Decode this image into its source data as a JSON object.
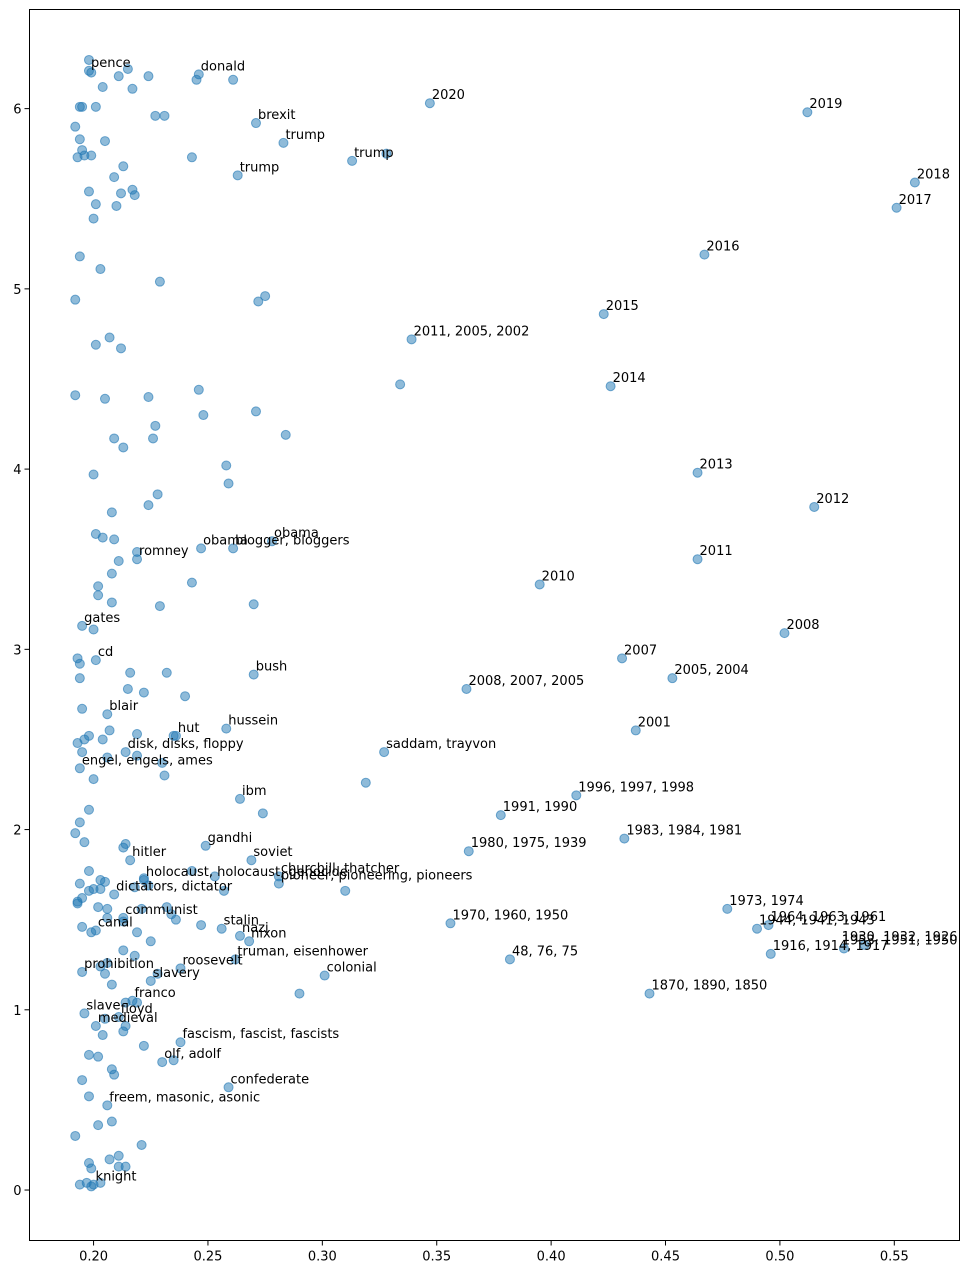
{
  "chart_data": {
    "type": "scatter",
    "title": "",
    "xlabel": "",
    "ylabel": "",
    "xlim": [
      0.172,
      0.5785
    ],
    "ylim": [
      -0.28,
      6.55
    ],
    "grid": false,
    "legend": "none",
    "color": "#1f77b4",
    "xticks": [
      0.2,
      0.25,
      0.3,
      0.35,
      0.4,
      0.45,
      0.5,
      0.55
    ],
    "yticks": [
      0,
      1,
      2,
      3,
      4,
      5,
      6
    ],
    "xtick_labels": [
      "0.20",
      "0.25",
      "0.30",
      "0.35",
      "0.40",
      "0.45",
      "0.50",
      "0.55"
    ],
    "ytick_labels": [
      "0",
      "1",
      "2",
      "3",
      "4",
      "5",
      "6"
    ],
    "labeled_points": [
      {
        "x": 0.198,
        "y": 6.21,
        "label": "pence"
      },
      {
        "x": 0.246,
        "y": 6.19,
        "label": "donald"
      },
      {
        "x": 0.347,
        "y": 6.03,
        "label": "2020"
      },
      {
        "x": 0.512,
        "y": 5.98,
        "label": "2019"
      },
      {
        "x": 0.271,
        "y": 5.92,
        "label": "brexit"
      },
      {
        "x": 0.283,
        "y": 5.81,
        "label": "trump"
      },
      {
        "x": 0.313,
        "y": 5.71,
        "label": "trump"
      },
      {
        "x": 0.263,
        "y": 5.63,
        "label": "trump"
      },
      {
        "x": 0.559,
        "y": 5.59,
        "label": "2018"
      },
      {
        "x": 0.551,
        "y": 5.45,
        "label": "2017"
      },
      {
        "x": 0.467,
        "y": 5.19,
        "label": "2016"
      },
      {
        "x": 0.423,
        "y": 4.86,
        "label": "2015"
      },
      {
        "x": 0.339,
        "y": 4.72,
        "label": "2011, 2005, 2002"
      },
      {
        "x": 0.426,
        "y": 4.46,
        "label": "2014"
      },
      {
        "x": 0.464,
        "y": 3.98,
        "label": "2013"
      },
      {
        "x": 0.515,
        "y": 3.79,
        "label": "2012"
      },
      {
        "x": 0.247,
        "y": 3.56,
        "label": "obama"
      },
      {
        "x": 0.278,
        "y": 3.6,
        "label": "obama"
      },
      {
        "x": 0.261,
        "y": 3.56,
        "label": "blogger, bloggers"
      },
      {
        "x": 0.464,
        "y": 3.5,
        "label": "2011"
      },
      {
        "x": 0.219,
        "y": 3.5,
        "label": "romney"
      },
      {
        "x": 0.395,
        "y": 3.36,
        "label": "2010"
      },
      {
        "x": 0.195,
        "y": 3.13,
        "label": "gates"
      },
      {
        "x": 0.502,
        "y": 3.09,
        "label": "2008"
      },
      {
        "x": 0.431,
        "y": 2.95,
        "label": "2007"
      },
      {
        "x": 0.201,
        "y": 2.94,
        "label": "cd"
      },
      {
        "x": 0.27,
        "y": 2.86,
        "label": "bush"
      },
      {
        "x": 0.453,
        "y": 2.84,
        "label": "2005, 2004"
      },
      {
        "x": 0.363,
        "y": 2.78,
        "label": "2008, 2007, 2005"
      },
      {
        "x": 0.206,
        "y": 2.64,
        "label": "blair"
      },
      {
        "x": 0.236,
        "y": 2.52,
        "label": "hut"
      },
      {
        "x": 0.258,
        "y": 2.56,
        "label": "hussein"
      },
      {
        "x": 0.437,
        "y": 2.55,
        "label": "2001"
      },
      {
        "x": 0.214,
        "y": 2.43,
        "label": "disk, disks, floppy"
      },
      {
        "x": 0.327,
        "y": 2.43,
        "label": "saddam, trayvon"
      },
      {
        "x": 0.194,
        "y": 2.34,
        "label": "engel, engels, ames"
      },
      {
        "x": 0.264,
        "y": 2.17,
        "label": "ibm"
      },
      {
        "x": 0.411,
        "y": 2.19,
        "label": "1996, 1997, 1998"
      },
      {
        "x": 0.378,
        "y": 2.08,
        "label": "1991, 1990"
      },
      {
        "x": 0.249,
        "y": 1.91,
        "label": "gandhi"
      },
      {
        "x": 0.269,
        "y": 1.83,
        "label": "soviet"
      },
      {
        "x": 0.281,
        "y": 1.74,
        "label": "churchill, thatcher"
      },
      {
        "x": 0.432,
        "y": 1.95,
        "label": "1983, 1984, 1981"
      },
      {
        "x": 0.364,
        "y": 1.88,
        "label": "1980, 1975, 1939"
      },
      {
        "x": 0.216,
        "y": 1.83,
        "label": "hitler"
      },
      {
        "x": 0.222,
        "y": 1.72,
        "label": "holocaust, holocaust, genocide"
      },
      {
        "x": 0.281,
        "y": 1.7,
        "label": "pioneer, pioneering, pioneers"
      },
      {
        "x": 0.209,
        "y": 1.64,
        "label": "dictators, dictator"
      },
      {
        "x": 0.477,
        "y": 1.56,
        "label": "1973, 1974"
      },
      {
        "x": 0.495,
        "y": 1.47,
        "label": "1964, 1963, 1961"
      },
      {
        "x": 0.213,
        "y": 1.51,
        "label": "communist"
      },
      {
        "x": 0.256,
        "y": 1.45,
        "label": "stalin"
      },
      {
        "x": 0.356,
        "y": 1.48,
        "label": "1970, 1960, 1950"
      },
      {
        "x": 0.49,
        "y": 1.45,
        "label": "1944, 1941, 1943"
      },
      {
        "x": 0.537,
        "y": 1.36,
        "label": "1930, 1932, 1926"
      },
      {
        "x": 0.201,
        "y": 1.44,
        "label": "canal"
      },
      {
        "x": 0.268,
        "y": 1.38,
        "label": "nixon"
      },
      {
        "x": 0.264,
        "y": 1.41,
        "label": "nazi"
      },
      {
        "x": 0.528,
        "y": 1.34,
        "label": "1953, 1951, 1950"
      },
      {
        "x": 0.262,
        "y": 1.28,
        "label": "truman, eisenhower"
      },
      {
        "x": 0.382,
        "y": 1.28,
        "label": "48, 76, 75"
      },
      {
        "x": 0.496,
        "y": 1.31,
        "label": "1916, 1914, 1917"
      },
      {
        "x": 0.195,
        "y": 1.21,
        "label": "prohibition"
      },
      {
        "x": 0.238,
        "y": 1.23,
        "label": "roosevelt"
      },
      {
        "x": 0.225,
        "y": 1.16,
        "label": "slavery"
      },
      {
        "x": 0.301,
        "y": 1.19,
        "label": "colonial"
      },
      {
        "x": 0.443,
        "y": 1.09,
        "label": "1870, 1890, 1850"
      },
      {
        "x": 0.196,
        "y": 0.98,
        "label": "slave"
      },
      {
        "x": 0.217,
        "y": 1.05,
        "label": "franco"
      },
      {
        "x": 0.211,
        "y": 0.96,
        "label": "floyd"
      },
      {
        "x": 0.201,
        "y": 0.91,
        "label": "medieval"
      },
      {
        "x": 0.238,
        "y": 0.82,
        "label": "fascism, fascist, fascists"
      },
      {
        "x": 0.23,
        "y": 0.71,
        "label": "olf, adolf"
      },
      {
        "x": 0.259,
        "y": 0.57,
        "label": "confederate"
      },
      {
        "x": 0.206,
        "y": 0.47,
        "label": "freem, masonic, asonic"
      },
      {
        "x": 0.2,
        "y": 0.03,
        "label": "knight"
      }
    ],
    "unlabeled_points": [
      [
        0.198,
        6.27
      ],
      [
        0.199,
        6.2
      ],
      [
        0.211,
        6.18
      ],
      [
        0.215,
        6.22
      ],
      [
        0.224,
        6.18
      ],
      [
        0.245,
        6.16
      ],
      [
        0.261,
        6.16
      ],
      [
        0.204,
        6.12
      ],
      [
        0.217,
        6.11
      ],
      [
        0.194,
        6.01
      ],
      [
        0.195,
        6.01
      ],
      [
        0.201,
        6.01
      ],
      [
        0.227,
        5.96
      ],
      [
        0.231,
        5.96
      ],
      [
        0.192,
        5.9
      ],
      [
        0.194,
        5.83
      ],
      [
        0.205,
        5.82
      ],
      [
        0.193,
        5.73
      ],
      [
        0.196,
        5.74
      ],
      [
        0.199,
        5.74
      ],
      [
        0.195,
        5.77
      ],
      [
        0.243,
        5.73
      ],
      [
        0.328,
        5.75
      ],
      [
        0.213,
        5.68
      ],
      [
        0.209,
        5.62
      ],
      [
        0.198,
        5.54
      ],
      [
        0.212,
        5.53
      ],
      [
        0.217,
        5.55
      ],
      [
        0.218,
        5.52
      ],
      [
        0.201,
        5.47
      ],
      [
        0.21,
        5.46
      ],
      [
        0.2,
        5.39
      ],
      [
        0.194,
        5.18
      ],
      [
        0.203,
        5.11
      ],
      [
        0.229,
        5.04
      ],
      [
        0.192,
        4.94
      ],
      [
        0.272,
        4.93
      ],
      [
        0.275,
        4.96
      ],
      [
        0.207,
        4.73
      ],
      [
        0.201,
        4.69
      ],
      [
        0.212,
        4.67
      ],
      [
        0.334,
        4.47
      ],
      [
        0.246,
        4.44
      ],
      [
        0.192,
        4.41
      ],
      [
        0.224,
        4.4
      ],
      [
        0.205,
        4.39
      ],
      [
        0.248,
        4.3
      ],
      [
        0.271,
        4.32
      ],
      [
        0.227,
        4.24
      ],
      [
        0.284,
        4.19
      ],
      [
        0.209,
        4.17
      ],
      [
        0.226,
        4.17
      ],
      [
        0.213,
        4.12
      ],
      [
        0.258,
        4.02
      ],
      [
        0.2,
        3.97
      ],
      [
        0.259,
        3.92
      ],
      [
        0.228,
        3.86
      ],
      [
        0.224,
        3.8
      ],
      [
        0.208,
        3.76
      ],
      [
        0.201,
        3.64
      ],
      [
        0.204,
        3.62
      ],
      [
        0.209,
        3.61
      ],
      [
        0.219,
        3.54
      ],
      [
        0.211,
        3.49
      ],
      [
        0.208,
        3.42
      ],
      [
        0.202,
        3.35
      ],
      [
        0.243,
        3.37
      ],
      [
        0.202,
        3.3
      ],
      [
        0.208,
        3.26
      ],
      [
        0.229,
        3.24
      ],
      [
        0.27,
        3.25
      ],
      [
        0.2,
        3.11
      ],
      [
        0.193,
        2.95
      ],
      [
        0.194,
        2.92
      ],
      [
        0.216,
        2.87
      ],
      [
        0.232,
        2.87
      ],
      [
        0.194,
        2.84
      ],
      [
        0.215,
        2.78
      ],
      [
        0.222,
        2.76
      ],
      [
        0.24,
        2.74
      ],
      [
        0.195,
        2.67
      ],
      [
        0.207,
        2.55
      ],
      [
        0.198,
        2.52
      ],
      [
        0.204,
        2.5
      ],
      [
        0.219,
        2.53
      ],
      [
        0.235,
        2.52
      ],
      [
        0.196,
        2.5
      ],
      [
        0.193,
        2.48
      ],
      [
        0.195,
        2.43
      ],
      [
        0.206,
        2.4
      ],
      [
        0.219,
        2.41
      ],
      [
        0.23,
        2.37
      ],
      [
        0.231,
        2.3
      ],
      [
        0.2,
        2.28
      ],
      [
        0.319,
        2.26
      ],
      [
        0.274,
        2.09
      ],
      [
        0.198,
        2.11
      ],
      [
        0.194,
        2.04
      ],
      [
        0.192,
        1.98
      ],
      [
        0.196,
        1.93
      ],
      [
        0.214,
        1.92
      ],
      [
        0.213,
        1.9
      ],
      [
        0.243,
        1.77
      ],
      [
        0.198,
        1.77
      ],
      [
        0.253,
        1.74
      ],
      [
        0.203,
        1.72
      ],
      [
        0.205,
        1.71
      ],
      [
        0.194,
        1.7
      ],
      [
        0.222,
        1.73
      ],
      [
        0.224,
        1.69
      ],
      [
        0.2,
        1.67
      ],
      [
        0.218,
        1.68
      ],
      [
        0.257,
        1.66
      ],
      [
        0.31,
        1.66
      ],
      [
        0.203,
        1.67
      ],
      [
        0.198,
        1.66
      ],
      [
        0.195,
        1.62
      ],
      [
        0.193,
        1.6
      ],
      [
        0.193,
        1.59
      ],
      [
        0.202,
        1.57
      ],
      [
        0.206,
        1.56
      ],
      [
        0.221,
        1.56
      ],
      [
        0.232,
        1.57
      ],
      [
        0.234,
        1.53
      ],
      [
        0.236,
        1.5
      ],
      [
        0.206,
        1.51
      ],
      [
        0.213,
        1.49
      ],
      [
        0.247,
        1.47
      ],
      [
        0.195,
        1.46
      ],
      [
        0.199,
        1.43
      ],
      [
        0.219,
        1.43
      ],
      [
        0.225,
        1.38
      ],
      [
        0.213,
        1.33
      ],
      [
        0.218,
        1.3
      ],
      [
        0.206,
        1.26
      ],
      [
        0.203,
        1.24
      ],
      [
        0.228,
        1.2
      ],
      [
        0.205,
        1.2
      ],
      [
        0.208,
        1.14
      ],
      [
        0.29,
        1.09
      ],
      [
        0.214,
        1.04
      ],
      [
        0.219,
        1.04
      ],
      [
        0.205,
        0.95
      ],
      [
        0.214,
        0.91
      ],
      [
        0.213,
        0.88
      ],
      [
        0.204,
        0.86
      ],
      [
        0.222,
        0.8
      ],
      [
        0.198,
        0.75
      ],
      [
        0.202,
        0.74
      ],
      [
        0.235,
        0.72
      ],
      [
        0.208,
        0.67
      ],
      [
        0.209,
        0.64
      ],
      [
        0.195,
        0.61
      ],
      [
        0.198,
        0.52
      ],
      [
        0.208,
        0.38
      ],
      [
        0.202,
        0.36
      ],
      [
        0.192,
        0.3
      ],
      [
        0.221,
        0.25
      ],
      [
        0.211,
        0.19
      ],
      [
        0.207,
        0.17
      ],
      [
        0.198,
        0.15
      ],
      [
        0.199,
        0.12
      ],
      [
        0.211,
        0.13
      ],
      [
        0.214,
        0.13
      ],
      [
        0.194,
        0.03
      ],
      [
        0.197,
        0.04
      ],
      [
        0.203,
        0.04
      ],
      [
        0.199,
        0.02
      ]
    ]
  }
}
